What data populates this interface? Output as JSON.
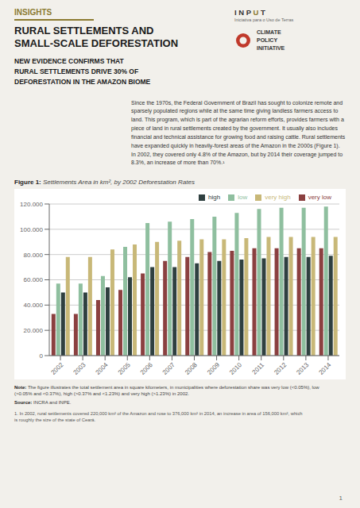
{
  "chart_data": {
    "type": "bar",
    "title": "Figure 1:",
    "subtitle": "Settlements Area in km², by 2002 Deforestation Rates",
    "categories": [
      "2002",
      "2003",
      "2004",
      "2005",
      "2006",
      "2007",
      "2008",
      "2009",
      "2010",
      "2011",
      "2012",
      "2013",
      "2014"
    ],
    "series": [
      {
        "name": "very low",
        "color": "#8B4040",
        "values": [
          33000,
          33000,
          44000,
          52000,
          65000,
          75000,
          78000,
          82000,
          83000,
          85000,
          85000,
          85000,
          85000
        ]
      },
      {
        "name": "low",
        "color": "#8FBF9F",
        "values": [
          57000,
          57000,
          63000,
          86000,
          105000,
          106000,
          108000,
          110000,
          113000,
          116000,
          117000,
          117000,
          118000
        ]
      },
      {
        "name": "high",
        "color": "#2F4040",
        "values": [
          50000,
          50000,
          54000,
          62000,
          70000,
          70000,
          73000,
          75000,
          76000,
          77000,
          78000,
          78000,
          79000
        ]
      },
      {
        "name": "very high",
        "color": "#C8B878",
        "values": [
          78000,
          78000,
          84000,
          88000,
          90000,
          91000,
          92000,
          92000,
          93000,
          94000,
          94000,
          94000,
          94000
        ]
      }
    ],
    "ylim": [
      0,
      120000
    ],
    "yticks": [
      0,
      {
        "value": 20000,
        "label": "20.000"
      },
      {
        "value": 40000,
        "label": "40.000"
      },
      {
        "value": 60000,
        "label": "60.000"
      },
      {
        "value": 80000,
        "label": "80.000"
      },
      {
        "value": 100000,
        "label": "100.000"
      },
      {
        "value": 120000,
        "label": "120.000"
      }
    ],
    "grid": true,
    "legend": "upper right",
    "annotations": [
      "INSIGHTS",
      "RURAL SETTLEMENTS AND\nSMALL-SCALE DEFORESTATION",
      "NEW EVIDENCE CONFIRMS THAT\nRURAL SETTLEMENTS DRIVE 30% OF\nDEFORESTATION IN THE AMAZON BIOME",
      "I N P",
      "U",
      "T",
      "Iniciativa para o Uso de Terras",
      "CLIMATE\nPOLICY\nINITIATIVE",
      "Since the 1970s, the Federal Government of Brazil has sought to colonize remote and sparsely populated regions while at the same time giving landless farmers access to land. This program, which is part of the agrarian reform efforts, provides farmers with a piece of land in rural settlements created by the government. It usually also includes financial and technical assistance for growing food and raising cattle. Rural settlements have expanded quickly in heavily-forest areas of the Amazon in the 2000s (Figure 1). In 2002, they covered only 4.8% of the Amazon, but by 2014 their coverage jumped to 8.3%, an increase of more than 70%.¹",
      "Note:",
      "The figure illustrates the total settlement area in square kilometers, in municipalities where deforestation share was very low (<0.05%), low\n(>0.05% and <0.37%), high (>0.37% and <1.23%) and very high (>1.23%) in 2002.",
      "Source:",
      "INCRA and INPE.",
      "1.  In 2002, rural settlements covered 220,000 km² of the Amazon and rose to 376,000 km² in 2014, an increase in area of 156,000 km², which\nis roughly the size of the state of Ceará.",
      "1"
    ]
  }
}
